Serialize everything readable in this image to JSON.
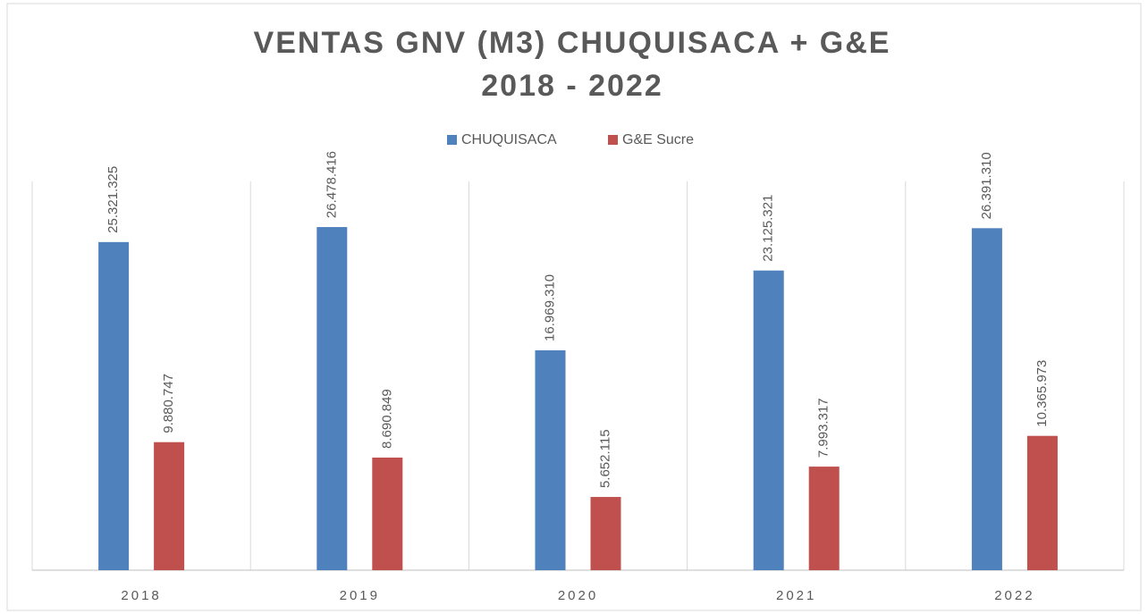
{
  "chart_data": {
    "type": "bar",
    "title": "VENTAS GNV (M3) CHUQUISACA + G&E",
    "subtitle": "2018 - 2022",
    "categories": [
      "2018",
      "2019",
      "2020",
      "2021",
      "2022"
    ],
    "series": [
      {
        "name": "CHUQUISACA",
        "color": "#4f81bd",
        "values": [
          25321325,
          26478416,
          16969310,
          23125321,
          26391310
        ],
        "value_labels": [
          "25.321.325",
          "26.478.416",
          "16.969.310",
          "23.125.321",
          "26.391.310"
        ]
      },
      {
        "name": "G&E Sucre",
        "color": "#c0504d",
        "values": [
          9880747,
          8690849,
          5652115,
          7993317,
          10365973
        ],
        "value_labels": [
          "9.880.747",
          "8.690.849",
          "5.652.115",
          "7.993.317",
          "10.365.973"
        ]
      }
    ],
    "ylim": [
      0,
      30000000
    ],
    "legend": "top"
  }
}
